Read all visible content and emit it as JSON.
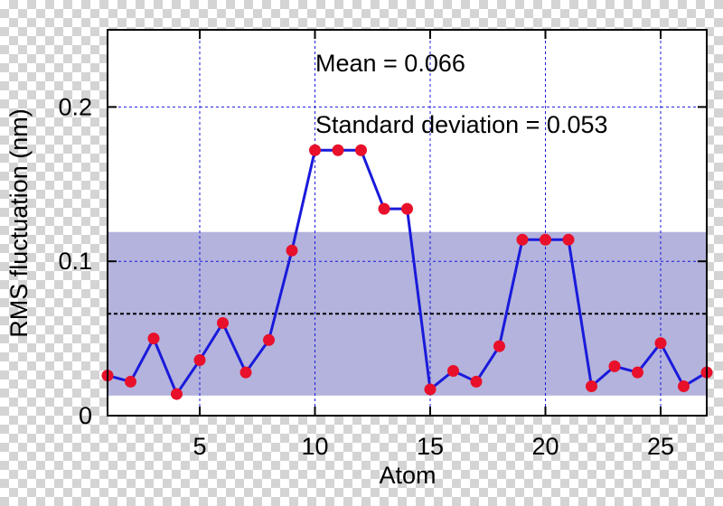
{
  "chart_data": {
    "type": "line",
    "title": "",
    "xlabel": "Atom",
    "ylabel": "RMS fluctuation (nm)",
    "xlim": [
      1,
      27
    ],
    "ylim": [
      0,
      0.25
    ],
    "x_ticks": [
      5,
      10,
      15,
      20,
      25
    ],
    "x_tick_labels": [
      "5",
      "10",
      "15",
      "20",
      "25"
    ],
    "y_ticks": [
      0,
      0.1,
      0.2
    ],
    "y_tick_labels": [
      "0",
      "0.1",
      "0.2"
    ],
    "grid": true,
    "grid_style": "dashed",
    "annotations": [
      "Mean = 0.066",
      "Standard deviation = 0.053"
    ],
    "mean": 0.066,
    "std_band": [
      0.013,
      0.119
    ],
    "series": [
      {
        "x": [
          1,
          2,
          3,
          4,
          5,
          6,
          7,
          8,
          9,
          10,
          11,
          12,
          13,
          14,
          15,
          16,
          17,
          18,
          19,
          20,
          21,
          22,
          23,
          24,
          25,
          26,
          27
        ],
        "y": [
          0.026,
          0.022,
          0.05,
          0.014,
          0.036,
          0.06,
          0.028,
          0.049,
          0.107,
          0.172,
          0.172,
          0.172,
          0.134,
          0.134,
          0.017,
          0.029,
          0.022,
          0.045,
          0.114,
          0.114,
          0.114,
          0.019,
          0.032,
          0.028,
          0.047,
          0.019,
          0.028
        ]
      }
    ],
    "colors": {
      "line": "#1a1adb",
      "marker": "#e8102a",
      "band": "#b3b3dd",
      "grid": "#1a1adb",
      "mean_line": "#000000"
    }
  }
}
